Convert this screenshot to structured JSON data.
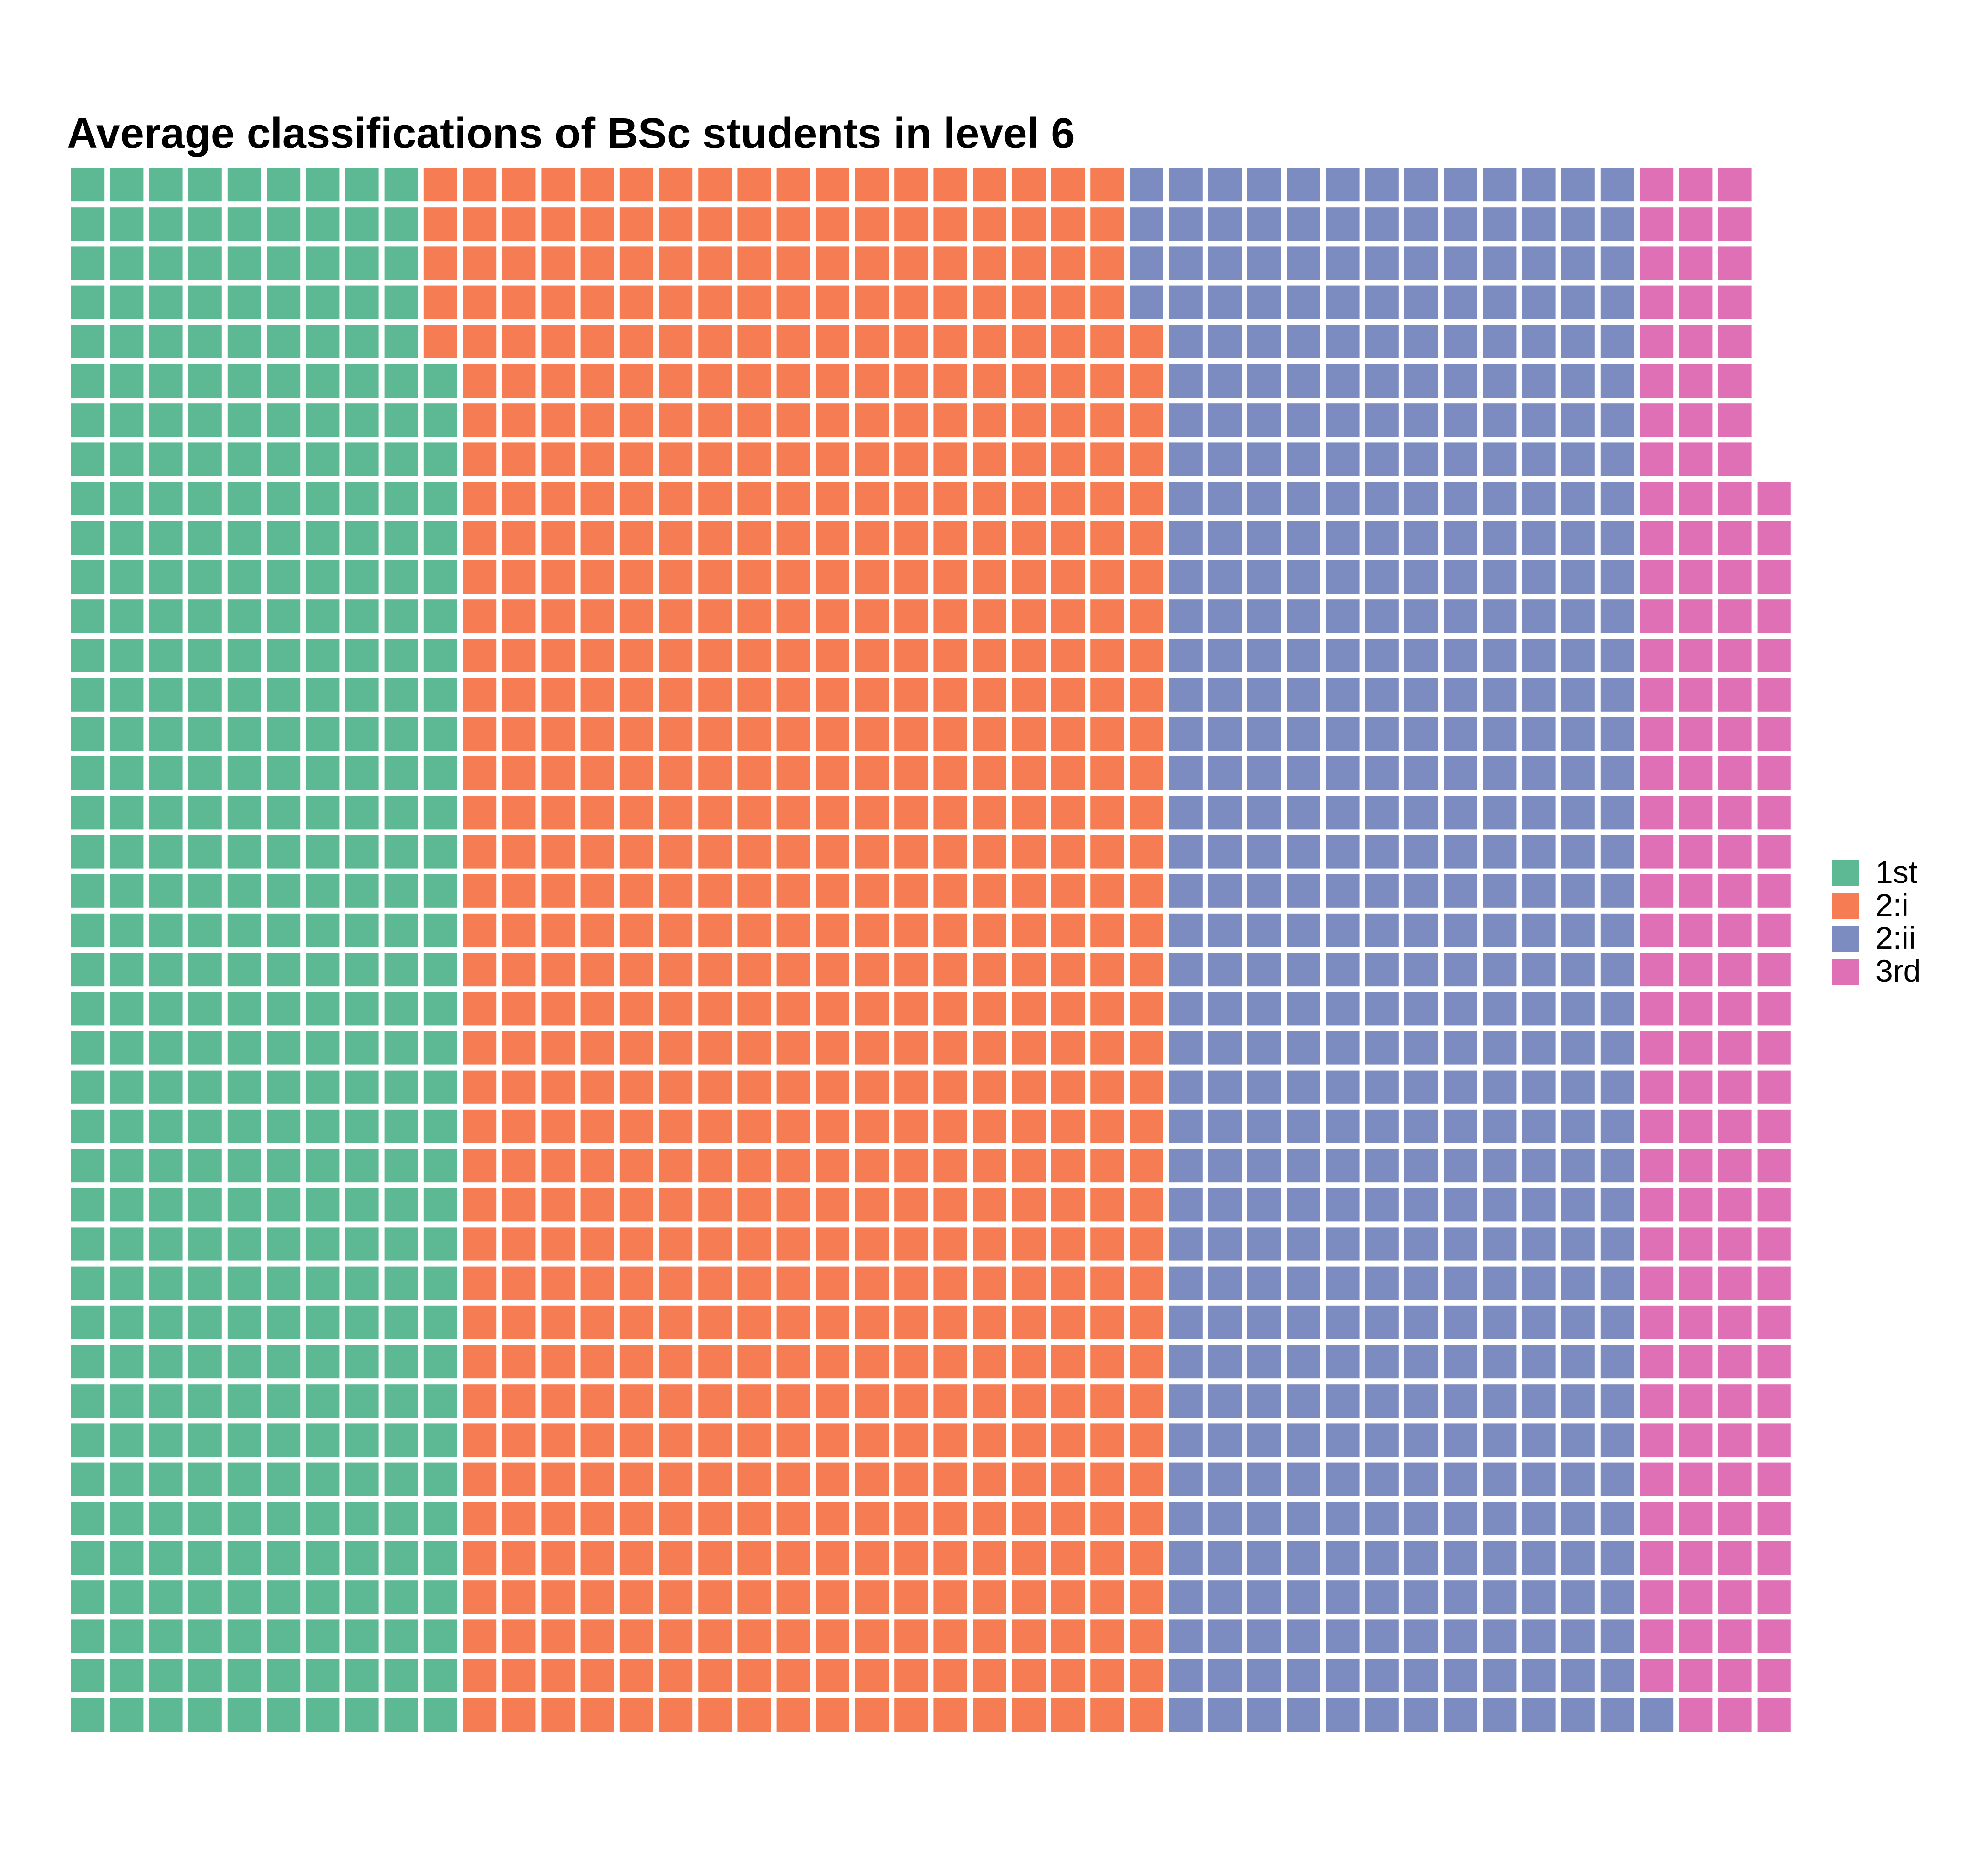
{
  "chart_data": {
    "type": "waffle",
    "title": "Average classifications of BSc students in level 6",
    "rows": 40,
    "fill_order": "column-wise, bottom to top, left to right",
    "series": [
      {
        "name": "1st",
        "value": 395,
        "color": "#5CB994"
      },
      {
        "name": "2:i",
        "value": 721,
        "color": "#F67C53"
      },
      {
        "name": "2:ii",
        "value": 485,
        "color": "#7C8CC0"
      },
      {
        "name": "3rd",
        "value": 151,
        "color": "#E070B5"
      }
    ],
    "legend_position": "right"
  }
}
